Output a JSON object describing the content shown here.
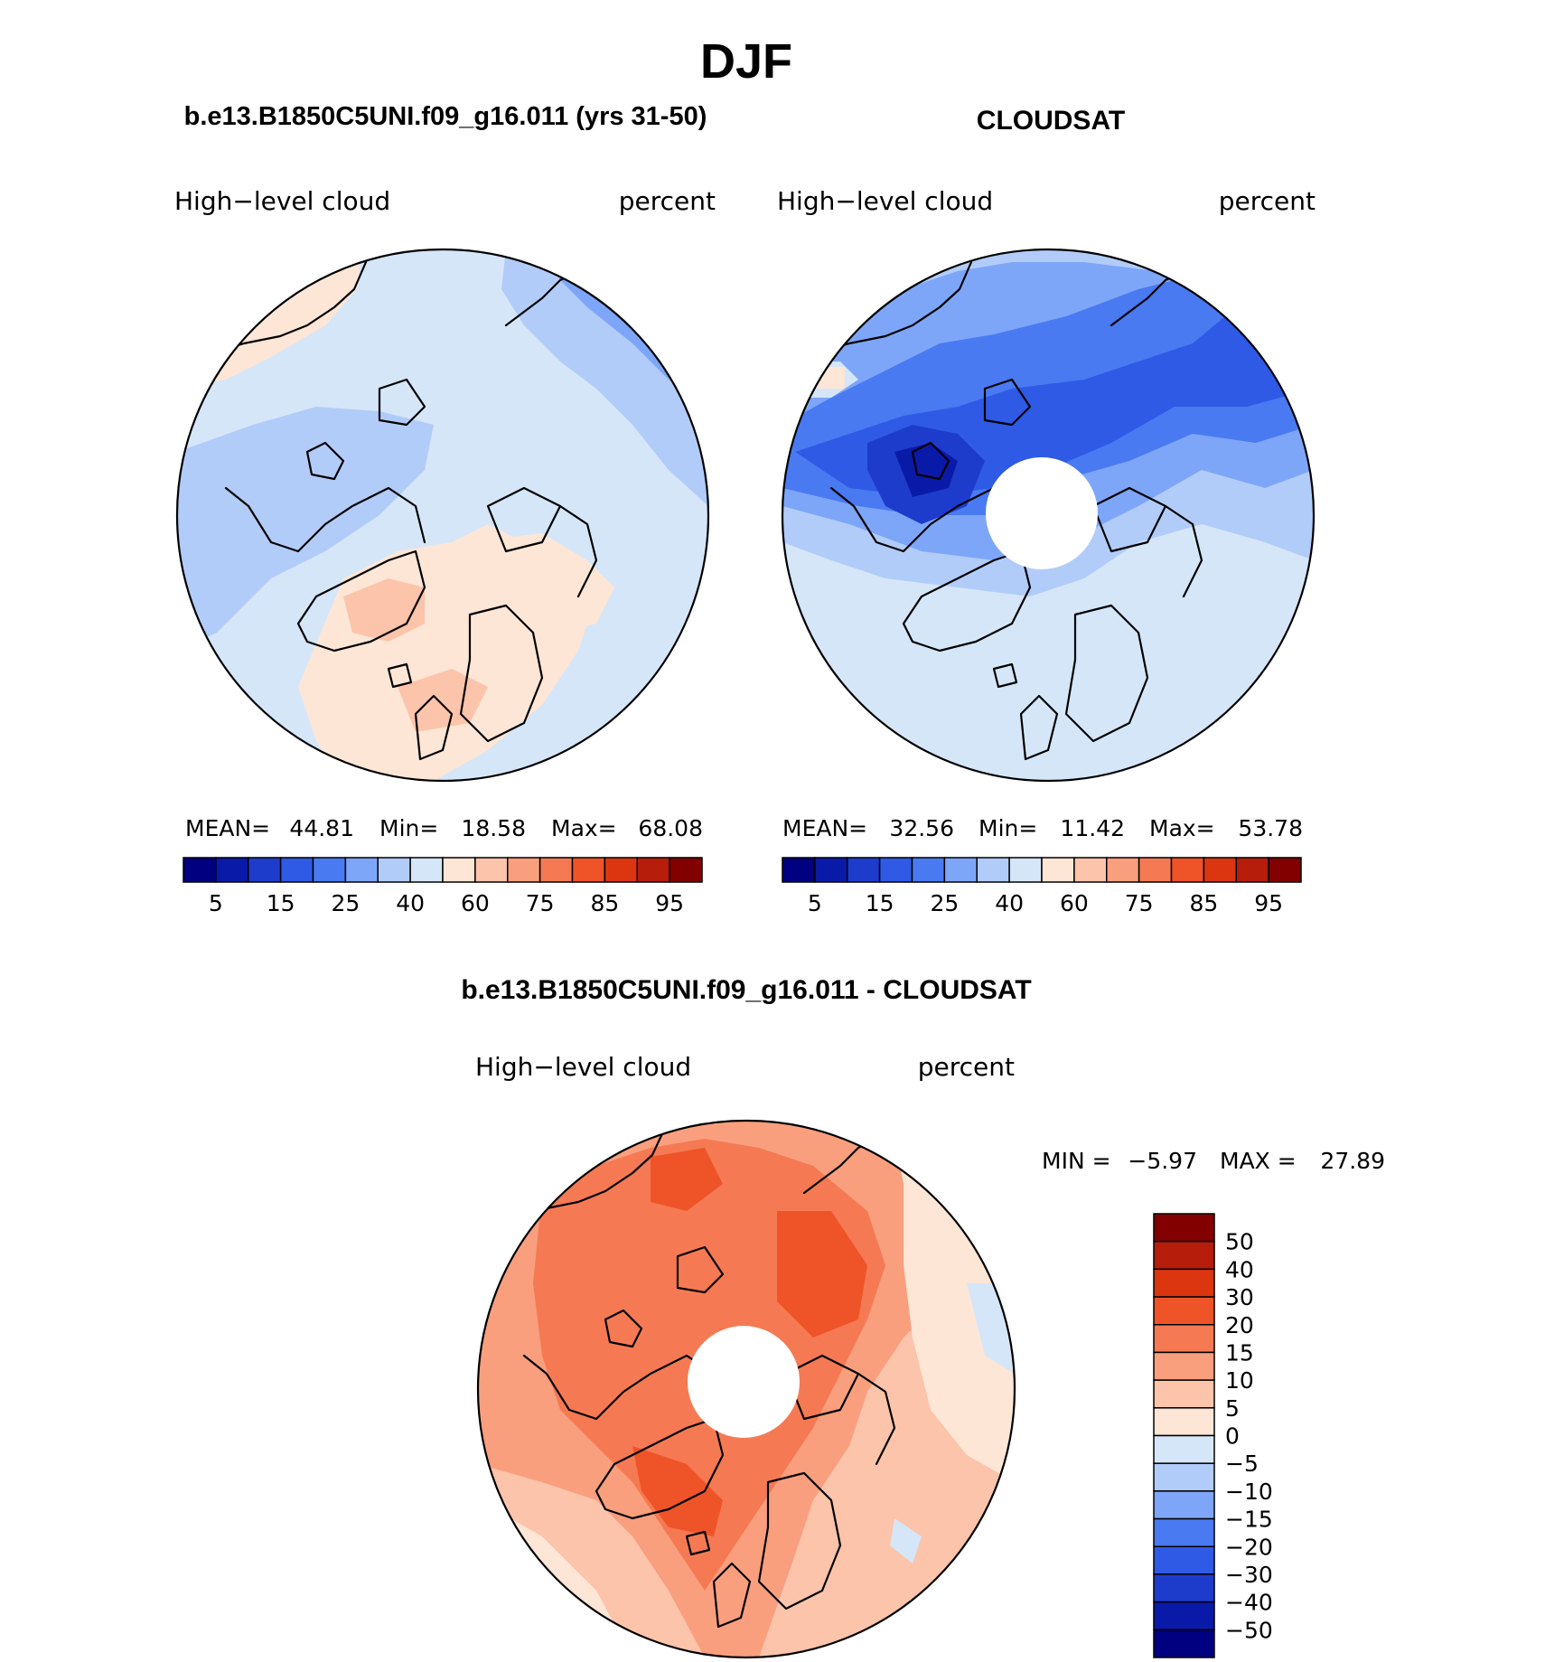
{
  "season_title": "DJF",
  "panels": [
    {
      "id": "model",
      "title": "b.e13.B1850C5UNI.f09_g16.011 (yrs 31-50)",
      "variable_label": "High−level cloud",
      "units_label": "percent",
      "stats": {
        "mean_label": "MEAN=",
        "mean": "44.81",
        "min_label": "Min=",
        "min": "18.58",
        "max_label": "Max=",
        "max": "68.08"
      },
      "colorbar_ticks": [
        "5",
        "15",
        "25",
        "40",
        "60",
        "75",
        "85",
        "95"
      ]
    },
    {
      "id": "obs",
      "title": "CLOUDSAT",
      "variable_label": "High−level cloud",
      "units_label": "percent",
      "stats": {
        "mean_label": "MEAN=",
        "mean": "32.56",
        "min_label": "Min=",
        "min": "11.42",
        "max_label": "Max=",
        "max": "53.78"
      },
      "colorbar_ticks": [
        "5",
        "15",
        "25",
        "40",
        "60",
        "75",
        "85",
        "95"
      ]
    }
  ],
  "diff_panel": {
    "title": "b.e13.B1850C5UNI.f09_g16.011 - CLOUDSAT",
    "variable_label": "High−level cloud",
    "units_label": "percent",
    "stats": {
      "min_label": "MIN =",
      "min": "−5.97",
      "max_label": "MAX =",
      "max": "27.89"
    },
    "colorbar_ticks": [
      "50",
      "40",
      "30",
      "20",
      "15",
      "10",
      "5",
      "0",
      "−5",
      "−10",
      "−15",
      "−20",
      "−30",
      "−40",
      "−50"
    ]
  },
  "colors": {
    "abs_palette": [
      "#000080",
      "#0a1aa8",
      "#1e3ccc",
      "#2f5ae6",
      "#4a7af2",
      "#7ea6f8",
      "#b2ccf9",
      "#d6e6f9",
      "#fde6d6",
      "#fcc4aa",
      "#f99f7e",
      "#f57a53",
      "#ef5428",
      "#dc3610",
      "#b61d0b",
      "#820000"
    ],
    "diff_palette": [
      "#820000",
      "#b61d0b",
      "#dc3610",
      "#ef5428",
      "#f57a53",
      "#f99f7e",
      "#fcc4aa",
      "#fde6d6",
      "#d6e6f9",
      "#b2ccf9",
      "#7ea6f8",
      "#4a7af2",
      "#2f5ae6",
      "#1e3ccc",
      "#0a1aa8",
      "#000080"
    ]
  }
}
